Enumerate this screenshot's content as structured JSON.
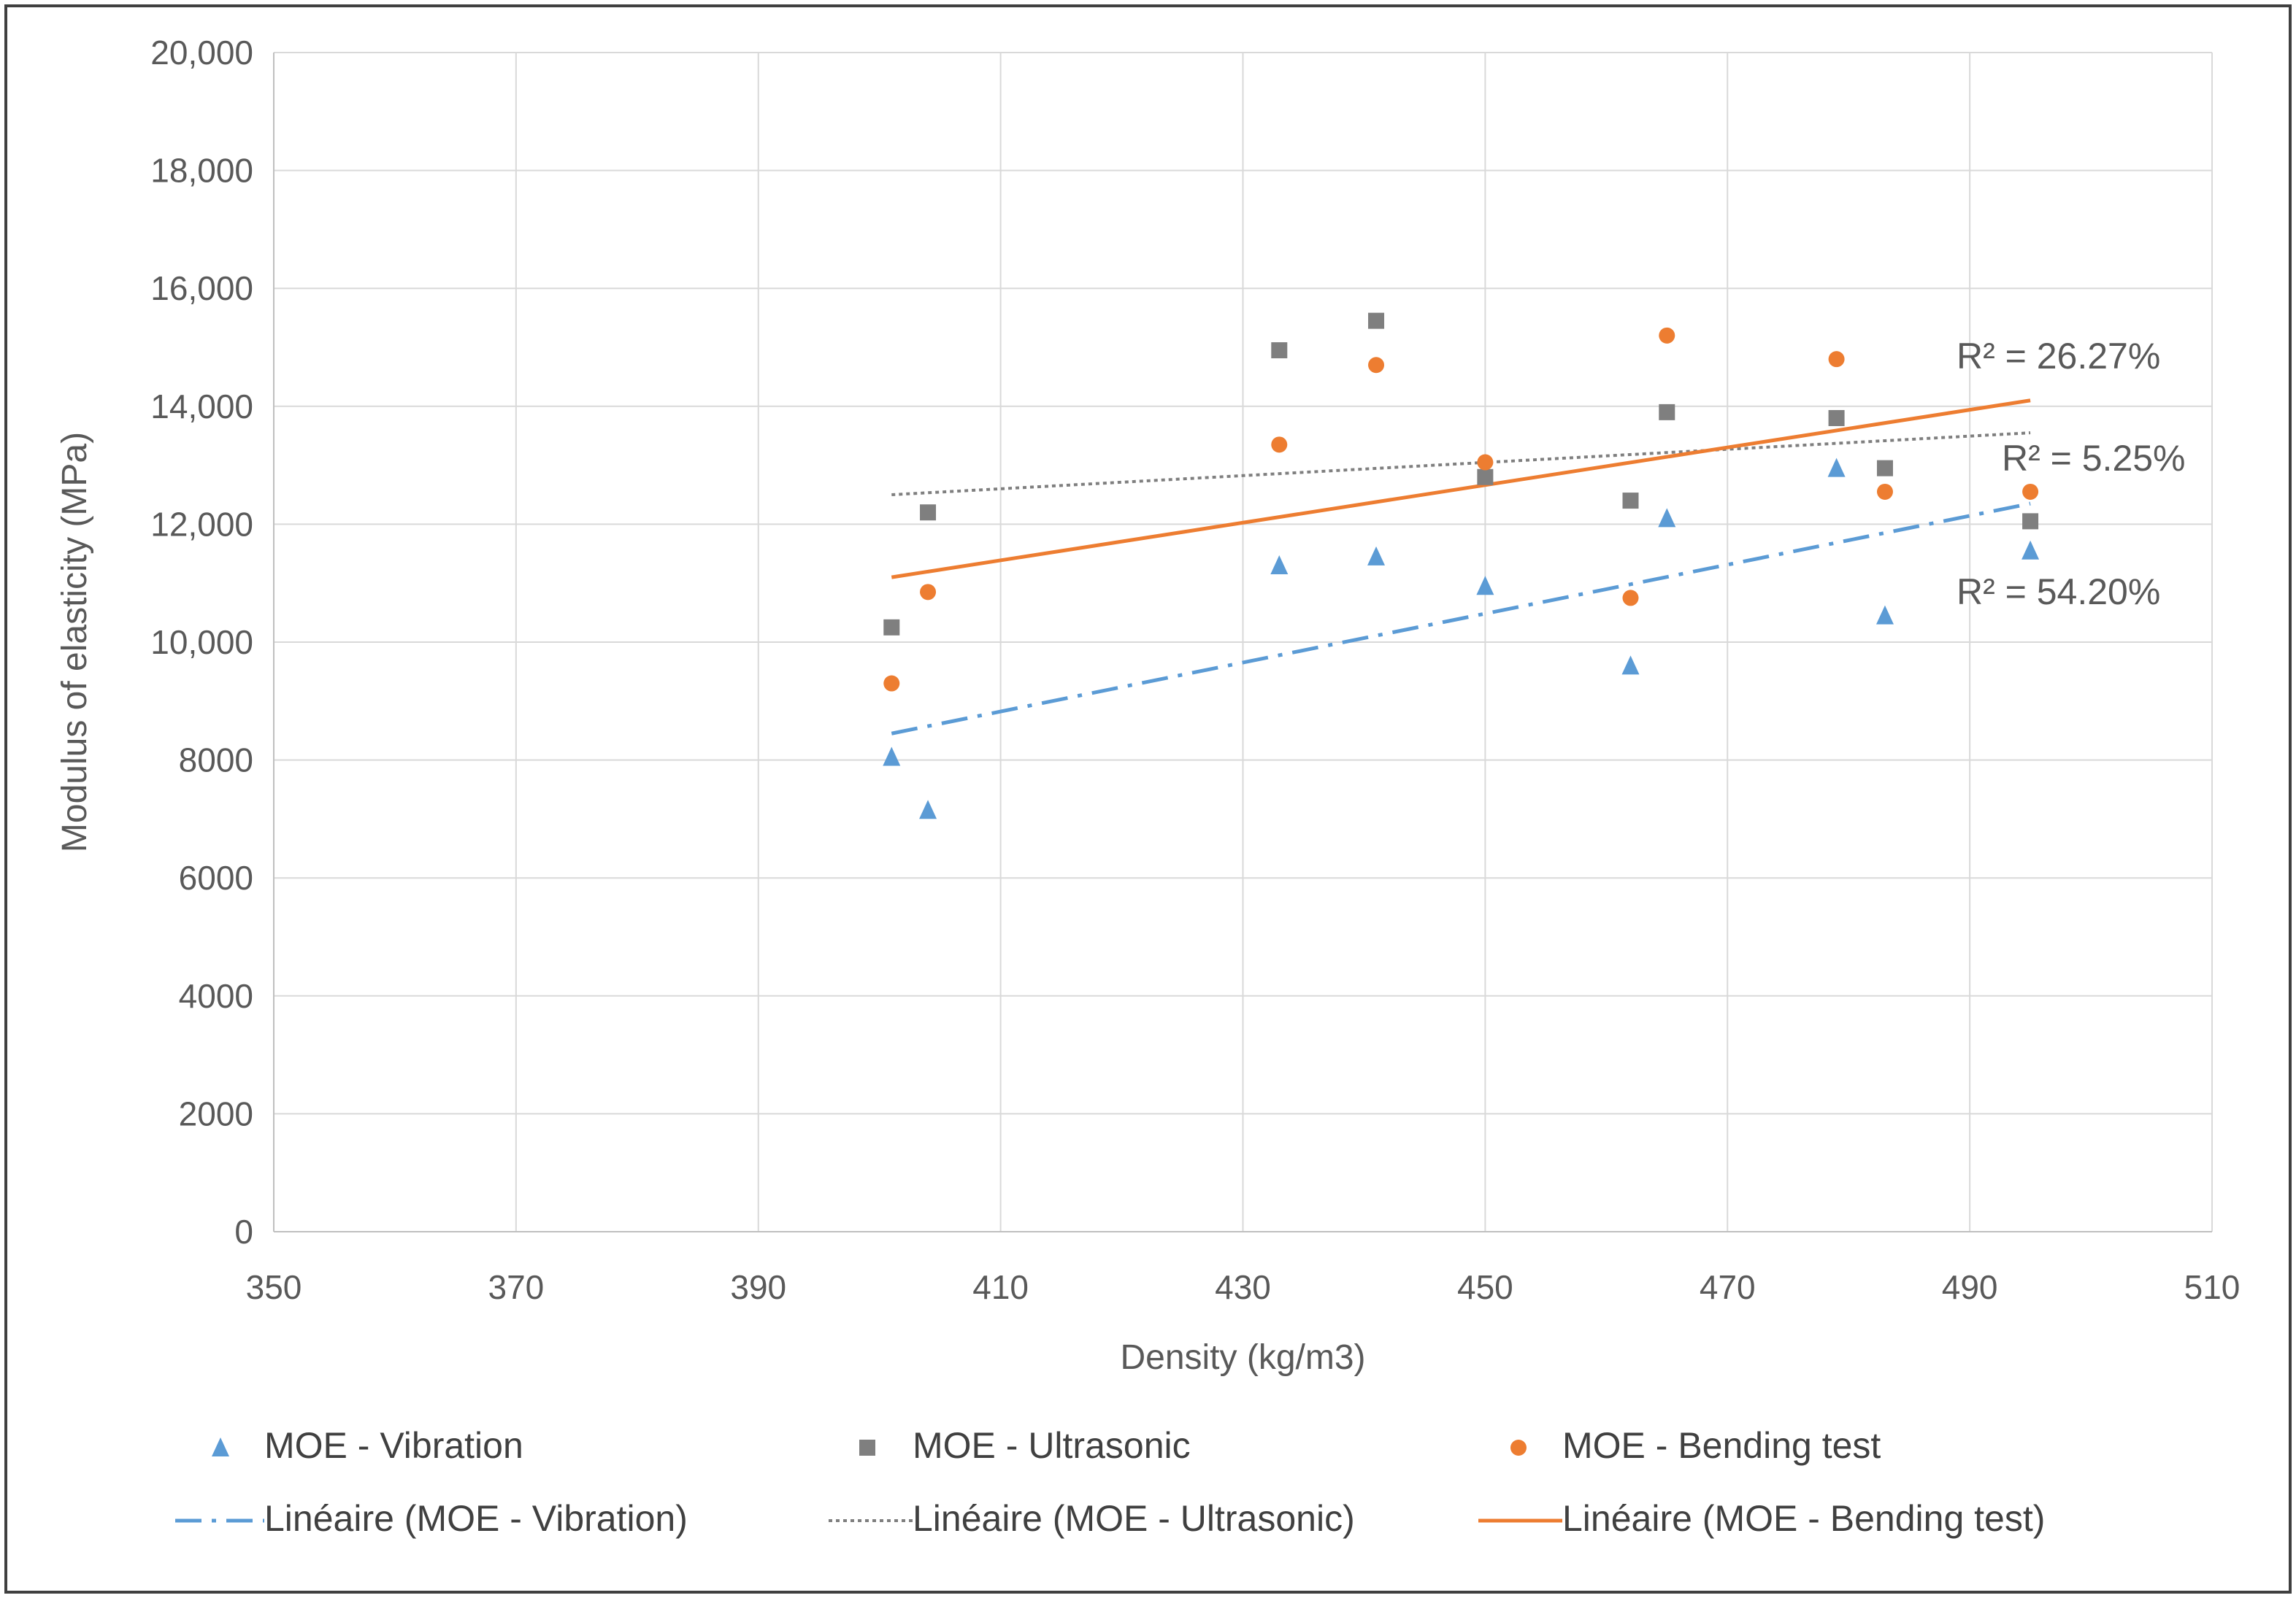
{
  "chart_data": {
    "type": "scatter",
    "title": "",
    "xlabel": "Density (kg/m3)",
    "ylabel": "Modulus of elasticity (MPa)",
    "xlim": [
      350,
      510
    ],
    "ylim": [
      0,
      20000
    ],
    "x_ticks": [
      350,
      370,
      390,
      410,
      430,
      450,
      470,
      490,
      510
    ],
    "x_tick_labels": [
      "350",
      "370",
      "390",
      "410",
      "430",
      "450",
      "470",
      "490",
      "510"
    ],
    "y_ticks": [
      0,
      2000,
      4000,
      6000,
      8000,
      10000,
      12000,
      14000,
      16000,
      18000,
      20000
    ],
    "y_tick_labels": [
      "0",
      "2000",
      "4000",
      "6000",
      "8000",
      "10,000",
      "12,000",
      "14,000",
      "16,000",
      "18,000",
      "20,000"
    ],
    "grid": true,
    "legend_position": "bottom",
    "series": [
      {
        "name": "MOE - Vibration",
        "marker": "triangle",
        "color": "#5B9BD5",
        "points": [
          [
            401,
            8050
          ],
          [
            404,
            7150
          ],
          [
            433,
            11300
          ],
          [
            441,
            11450
          ],
          [
            450,
            10950
          ],
          [
            462,
            9600
          ],
          [
            465,
            12100
          ],
          [
            479,
            12950
          ],
          [
            483,
            10450
          ],
          [
            495,
            11550
          ]
        ],
        "trend": {
          "name": "Linéaire (MOE - Vibration)",
          "style": "dash-dot",
          "x": [
            401,
            495
          ],
          "y": [
            8450,
            12350
          ],
          "r2_label": "R² = 54.20%"
        }
      },
      {
        "name": "MOE - Ultrasonic",
        "marker": "square",
        "color": "#7F7F7F",
        "points": [
          [
            401,
            10250
          ],
          [
            404,
            12200
          ],
          [
            433,
            14950
          ],
          [
            441,
            15450
          ],
          [
            450,
            12800
          ],
          [
            462,
            12400
          ],
          [
            465,
            13900
          ],
          [
            479,
            13800
          ],
          [
            483,
            12950
          ],
          [
            495,
            12050
          ]
        ],
        "trend": {
          "name": "Linéaire (MOE - Ultrasonic)",
          "style": "dotted",
          "x": [
            401,
            495
          ],
          "y": [
            12500,
            13550
          ],
          "r2_label": "R² = 5.25%"
        }
      },
      {
        "name": "MOE - Bending test",
        "marker": "circle",
        "color": "#ED7D31",
        "points": [
          [
            401,
            9300
          ],
          [
            404,
            10850
          ],
          [
            433,
            13350
          ],
          [
            441,
            14700
          ],
          [
            450,
            13050
          ],
          [
            462,
            10750
          ],
          [
            465,
            15200
          ],
          [
            479,
            14800
          ],
          [
            483,
            12550
          ],
          [
            495,
            12550
          ]
        ],
        "trend": {
          "name": "Linéaire (MOE - Bending test)",
          "style": "solid",
          "x": [
            401,
            495
          ],
          "y": [
            11100,
            14100
          ],
          "r2_label": "R² = 26.27%"
        }
      }
    ]
  }
}
